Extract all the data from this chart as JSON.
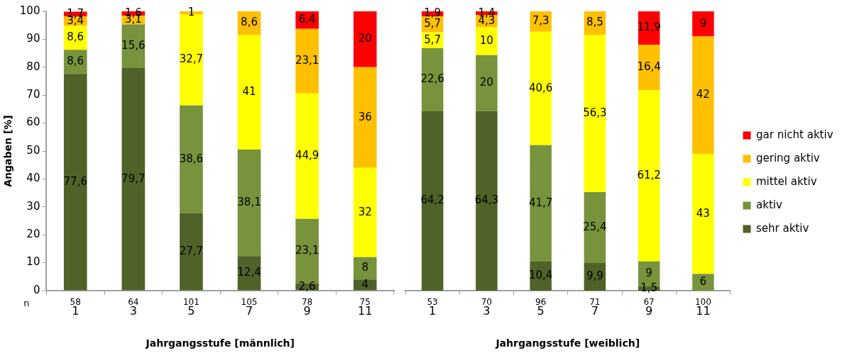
{
  "chart_data": [
    {
      "type": "bar",
      "stacked": true,
      "xlabel": "Jahrgangsstufe [männlich]",
      "ylabel": "Angaben [%]",
      "categories": [
        "1",
        "3",
        "5",
        "7",
        "9",
        "11"
      ],
      "ylim": [
        0,
        100
      ],
      "yticks": [
        0,
        10,
        20,
        30,
        40,
        50,
        60,
        70,
        80,
        90,
        100
      ],
      "grid": false,
      "legend": false,
      "series": [
        {
          "color": "#4f6228",
          "values": [
            77.6,
            79.7,
            27.7,
            12.4,
            2.6,
            4
          ],
          "value_labels": [
            "77,6",
            "79,7",
            "27,7",
            "12,4",
            "2,6",
            "4"
          ]
        },
        {
          "color": "#77933c",
          "values": [
            8.6,
            15.6,
            38.6,
            38.1,
            23.1,
            8
          ],
          "value_labels": [
            "8,6",
            "15,6",
            "38,6",
            "38,1",
            "23,1",
            "8"
          ]
        },
        {
          "color": "#ffff00",
          "values": [
            8.6,
            null,
            32.7,
            41,
            44.9,
            32
          ],
          "value_labels": [
            "8,6",
            null,
            "32,7",
            "41",
            "44,9",
            "32"
          ]
        },
        {
          "color": "#ffc000",
          "values": [
            3.4,
            3.1,
            1,
            8.6,
            23.1,
            36
          ],
          "value_labels": [
            "3,4",
            "3,1",
            "1",
            "8,6",
            "23,1",
            "36"
          ]
        },
        {
          "color": "#ff0000",
          "values": [
            1.7,
            1.6,
            null,
            null,
            6.4,
            20
          ],
          "value_labels": [
            "1,7",
            "1,6",
            null,
            null,
            "6,4",
            "20"
          ]
        }
      ],
      "annotations": [
        "n",
        "58",
        "64",
        "101",
        "105",
        "78",
        "75"
      ]
    },
    {
      "type": "bar",
      "stacked": true,
      "xlabel": "Jahrgangsstufe [weiblich]",
      "categories": [
        "1",
        "3",
        "5",
        "7",
        "9",
        "11"
      ],
      "ylim": [
        0,
        100
      ],
      "yticks": [
        0,
        10,
        20,
        30,
        40,
        50,
        60,
        70,
        80,
        90,
        100
      ],
      "tick_labels": "x",
      "grid": false,
      "legend": "right",
      "series": [
        {
          "name": "sehr aktiv",
          "color": "#4f6228",
          "values": [
            64.2,
            64.3,
            10.4,
            9.9,
            1.5,
            null
          ],
          "value_labels": [
            "64,2",
            "64,3",
            "10,4",
            "9,9",
            "1,5",
            null
          ]
        },
        {
          "name": "aktiv",
          "color": "#77933c",
          "values": [
            22.6,
            20,
            41.7,
            25.4,
            9,
            6
          ],
          "value_labels": [
            "22,6",
            "20",
            "41,7",
            "25,4",
            "9",
            "6"
          ]
        },
        {
          "name": "mittel aktiv",
          "color": "#ffff00",
          "values": [
            5.7,
            10,
            40.6,
            56.3,
            61.2,
            43
          ],
          "value_labels": [
            "5,7",
            "10",
            "40,6",
            "56,3",
            "61,2",
            "43"
          ]
        },
        {
          "name": "gering aktiv",
          "color": "#ffc000",
          "values": [
            5.7,
            4.3,
            7.3,
            8.5,
            16.4,
            42
          ],
          "value_labels": [
            "5,7",
            "4,3",
            "7,3",
            "8,5",
            "16,4",
            "42"
          ]
        },
        {
          "name": "gar nicht aktiv",
          "color": "#ff0000",
          "values": [
            1.9,
            1.4,
            null,
            null,
            11.9,
            9
          ],
          "value_labels": [
            "1,9",
            "1,4",
            null,
            null,
            "11,9",
            "9"
          ]
        }
      ],
      "annotations": [
        "53",
        "70",
        "96",
        "71",
        "67",
        "100"
      ]
    }
  ]
}
